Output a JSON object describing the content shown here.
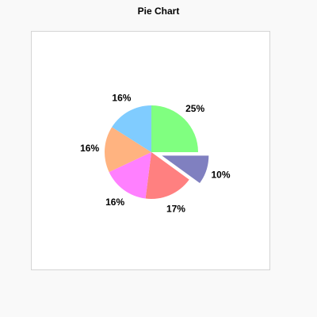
{
  "chart_data": {
    "type": "pie",
    "title": "Pie Chart",
    "slices": [
      {
        "label": "25%",
        "value": 25,
        "color": "#80ff80",
        "exploded": false
      },
      {
        "label": "10%",
        "value": 10,
        "color": "#8080c0",
        "exploded": true
      },
      {
        "label": "17%",
        "value": 17,
        "color": "#ff8080",
        "exploded": false
      },
      {
        "label": "16%",
        "value": 16,
        "color": "#ff80ff",
        "exploded": false
      },
      {
        "label": "16%",
        "value": 16,
        "color": "#ffb380",
        "exploded": false
      },
      {
        "label": "16%",
        "value": 16,
        "color": "#80ccff",
        "exploded": false
      }
    ],
    "start_angle_deg": 0,
    "direction": "clockwise",
    "legend": "none"
  }
}
